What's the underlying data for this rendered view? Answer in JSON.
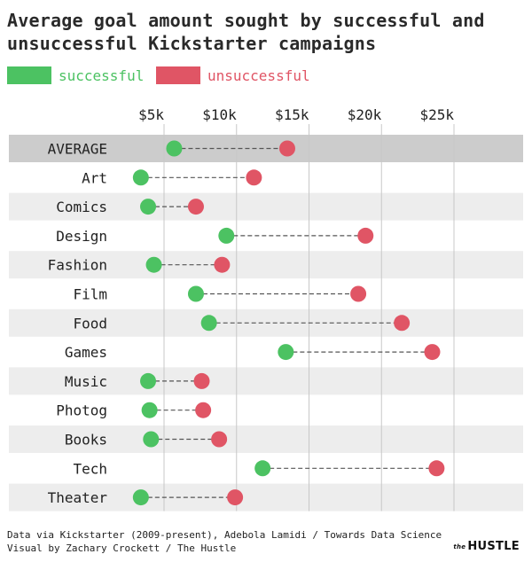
{
  "title": "Average goal amount sought by successful and unsuccessful Kickstarter campaigns",
  "legend": {
    "successful": {
      "label": "successful",
      "color": "#4cc262"
    },
    "unsuccessful": {
      "label": "unsuccessful",
      "color": "#e05565"
    }
  },
  "footer": {
    "line1": "Data via Kickstarter (2009-present), Adebola Lamidi / Towards Data Science",
    "line2": "Visual by Zachary Crockett / The Hustle"
  },
  "brand": {
    "small": "the",
    "main": "HUSTLE"
  },
  "chart_data": {
    "type": "dot-plot",
    "title": "Average goal amount sought by successful and unsuccessful Kickstarter campaigns",
    "x_ticks": [
      {
        "value": 5000,
        "label": "$5k"
      },
      {
        "value": 10000,
        "label": "$10k"
      },
      {
        "value": 15000,
        "label": "$15k"
      },
      {
        "value": 20000,
        "label": "$20k"
      },
      {
        "value": 25000,
        "label": "$25k"
      }
    ],
    "xlim": [
      0,
      27000
    ],
    "grid": true,
    "legend_position": "top-left",
    "categories": [
      "AVERAGE",
      "Art",
      "Comics",
      "Design",
      "Fashion",
      "Film",
      "Food",
      "Games",
      "Music",
      "Photog",
      "Books",
      "Tech",
      "Theater"
    ],
    "series": [
      {
        "name": "successful",
        "color": "#4cc262",
        "values": [
          5700,
          3400,
          3900,
          9300,
          4300,
          7200,
          8100,
          13400,
          3900,
          4000,
          4100,
          11800,
          3400
        ]
      },
      {
        "name": "unsuccessful",
        "color": "#e05565",
        "values": [
          13500,
          11200,
          7200,
          18900,
          9000,
          18400,
          21400,
          23500,
          7600,
          7700,
          8800,
          23800,
          9900
        ]
      }
    ],
    "highlight_category": "AVERAGE"
  }
}
